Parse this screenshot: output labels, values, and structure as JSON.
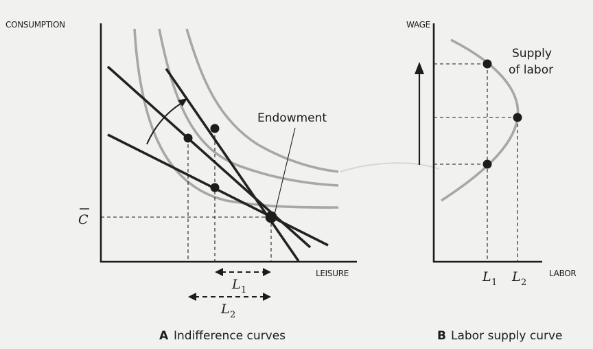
{
  "panel_a": {
    "y_axis_label": "CONSUMPTION",
    "x_axis_label": "LEISURE",
    "endowment_label": "Endowment",
    "c_bar_label": "C",
    "l1_label": "L",
    "l1_sub": "1",
    "l2_label": "L",
    "l2_sub": "2",
    "caption_letter": "A",
    "caption_text": "Indifference curves"
  },
  "panel_b": {
    "y_axis_label": "WAGE",
    "x_axis_label": "LABOR",
    "supply_label_line1": "Supply",
    "supply_label_line2": "of labor",
    "l1_label": "L",
    "l1_sub": "1",
    "l2_label": "L",
    "l2_sub": "2",
    "caption_letter": "B",
    "caption_text": "Labor supply curve"
  },
  "colors": {
    "budget_line": "#222222",
    "indifference_curve": "#a7a7a7",
    "background": "#f1f1ef"
  }
}
